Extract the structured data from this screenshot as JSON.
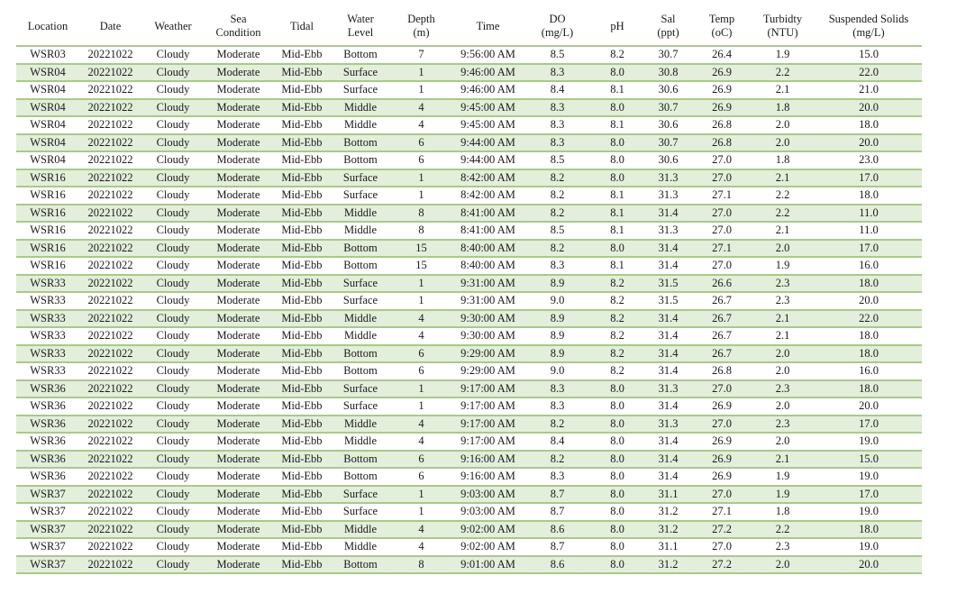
{
  "table": {
    "headers": [
      "Location",
      "Date",
      "Weather",
      "Sea\nCondition",
      "Tidal",
      "Water\nLevel",
      "Depth\n(m)",
      "Time",
      "DO\n(mg/L)",
      "pH",
      "Sal\n(ppt)",
      "Temp\n(oC)",
      "Turbidty\n(NTU)",
      "Suspended Solids\n(mg/L)"
    ],
    "rows": [
      [
        "WSR03",
        "20221022",
        "Cloudy",
        "Moderate",
        "Mid-Ebb",
        "Bottom",
        "7",
        "9:56:00 AM",
        "8.5",
        "8.2",
        "30.7",
        "26.4",
        "1.9",
        "15.0"
      ],
      [
        "WSR04",
        "20221022",
        "Cloudy",
        "Moderate",
        "Mid-Ebb",
        "Surface",
        "1",
        "9:46:00 AM",
        "8.3",
        "8.0",
        "30.8",
        "26.9",
        "2.2",
        "22.0"
      ],
      [
        "WSR04",
        "20221022",
        "Cloudy",
        "Moderate",
        "Mid-Ebb",
        "Surface",
        "1",
        "9:46:00 AM",
        "8.4",
        "8.1",
        "30.6",
        "26.9",
        "2.1",
        "21.0"
      ],
      [
        "WSR04",
        "20221022",
        "Cloudy",
        "Moderate",
        "Mid-Ebb",
        "Middle",
        "4",
        "9:45:00 AM",
        "8.3",
        "8.0",
        "30.7",
        "26.9",
        "1.8",
        "20.0"
      ],
      [
        "WSR04",
        "20221022",
        "Cloudy",
        "Moderate",
        "Mid-Ebb",
        "Middle",
        "4",
        "9:45:00 AM",
        "8.3",
        "8.1",
        "30.6",
        "26.8",
        "2.0",
        "18.0"
      ],
      [
        "WSR04",
        "20221022",
        "Cloudy",
        "Moderate",
        "Mid-Ebb",
        "Bottom",
        "6",
        "9:44:00 AM",
        "8.3",
        "8.0",
        "30.7",
        "26.8",
        "2.0",
        "20.0"
      ],
      [
        "WSR04",
        "20221022",
        "Cloudy",
        "Moderate",
        "Mid-Ebb",
        "Bottom",
        "6",
        "9:44:00 AM",
        "8.5",
        "8.0",
        "30.6",
        "27.0",
        "1.8",
        "23.0"
      ],
      [
        "WSR16",
        "20221022",
        "Cloudy",
        "Moderate",
        "Mid-Ebb",
        "Surface",
        "1",
        "8:42:00 AM",
        "8.2",
        "8.0",
        "31.3",
        "27.0",
        "2.1",
        "17.0"
      ],
      [
        "WSR16",
        "20221022",
        "Cloudy",
        "Moderate",
        "Mid-Ebb",
        "Surface",
        "1",
        "8:42:00 AM",
        "8.2",
        "8.1",
        "31.3",
        "27.1",
        "2.2",
        "18.0"
      ],
      [
        "WSR16",
        "20221022",
        "Cloudy",
        "Moderate",
        "Mid-Ebb",
        "Middle",
        "8",
        "8:41:00 AM",
        "8.2",
        "8.1",
        "31.4",
        "27.0",
        "2.2",
        "11.0"
      ],
      [
        "WSR16",
        "20221022",
        "Cloudy",
        "Moderate",
        "Mid-Ebb",
        "Middle",
        "8",
        "8:41:00 AM",
        "8.5",
        "8.1",
        "31.3",
        "27.0",
        "2.1",
        "11.0"
      ],
      [
        "WSR16",
        "20221022",
        "Cloudy",
        "Moderate",
        "Mid-Ebb",
        "Bottom",
        "15",
        "8:40:00 AM",
        "8.2",
        "8.0",
        "31.4",
        "27.1",
        "2.0",
        "17.0"
      ],
      [
        "WSR16",
        "20221022",
        "Cloudy",
        "Moderate",
        "Mid-Ebb",
        "Bottom",
        "15",
        "8:40:00 AM",
        "8.3",
        "8.1",
        "31.4",
        "27.0",
        "1.9",
        "16.0"
      ],
      [
        "WSR33",
        "20221022",
        "Cloudy",
        "Moderate",
        "Mid-Ebb",
        "Surface",
        "1",
        "9:31:00 AM",
        "8.9",
        "8.2",
        "31.5",
        "26.6",
        "2.3",
        "18.0"
      ],
      [
        "WSR33",
        "20221022",
        "Cloudy",
        "Moderate",
        "Mid-Ebb",
        "Surface",
        "1",
        "9:31:00 AM",
        "9.0",
        "8.2",
        "31.5",
        "26.7",
        "2.3",
        "20.0"
      ],
      [
        "WSR33",
        "20221022",
        "Cloudy",
        "Moderate",
        "Mid-Ebb",
        "Middle",
        "4",
        "9:30:00 AM",
        "8.9",
        "8.2",
        "31.4",
        "26.7",
        "2.1",
        "22.0"
      ],
      [
        "WSR33",
        "20221022",
        "Cloudy",
        "Moderate",
        "Mid-Ebb",
        "Middle",
        "4",
        "9:30:00 AM",
        "8.9",
        "8.2",
        "31.4",
        "26.7",
        "2.1",
        "18.0"
      ],
      [
        "WSR33",
        "20221022",
        "Cloudy",
        "Moderate",
        "Mid-Ebb",
        "Bottom",
        "6",
        "9:29:00 AM",
        "8.9",
        "8.2",
        "31.4",
        "26.7",
        "2.0",
        "18.0"
      ],
      [
        "WSR33",
        "20221022",
        "Cloudy",
        "Moderate",
        "Mid-Ebb",
        "Bottom",
        "6",
        "9:29:00 AM",
        "9.0",
        "8.2",
        "31.4",
        "26.8",
        "2.0",
        "16.0"
      ],
      [
        "WSR36",
        "20221022",
        "Cloudy",
        "Moderate",
        "Mid-Ebb",
        "Surface",
        "1",
        "9:17:00 AM",
        "8.3",
        "8.0",
        "31.3",
        "27.0",
        "2.3",
        "18.0"
      ],
      [
        "WSR36",
        "20221022",
        "Cloudy",
        "Moderate",
        "Mid-Ebb",
        "Surface",
        "1",
        "9:17:00 AM",
        "8.3",
        "8.0",
        "31.4",
        "26.9",
        "2.0",
        "20.0"
      ],
      [
        "WSR36",
        "20221022",
        "Cloudy",
        "Moderate",
        "Mid-Ebb",
        "Middle",
        "4",
        "9:17:00 AM",
        "8.2",
        "8.0",
        "31.3",
        "27.0",
        "2.3",
        "17.0"
      ],
      [
        "WSR36",
        "20221022",
        "Cloudy",
        "Moderate",
        "Mid-Ebb",
        "Middle",
        "4",
        "9:17:00 AM",
        "8.4",
        "8.0",
        "31.4",
        "26.9",
        "2.0",
        "19.0"
      ],
      [
        "WSR36",
        "20221022",
        "Cloudy",
        "Moderate",
        "Mid-Ebb",
        "Bottom",
        "6",
        "9:16:00 AM",
        "8.2",
        "8.0",
        "31.4",
        "26.9",
        "2.1",
        "15.0"
      ],
      [
        "WSR36",
        "20221022",
        "Cloudy",
        "Moderate",
        "Mid-Ebb",
        "Bottom",
        "6",
        "9:16:00 AM",
        "8.3",
        "8.0",
        "31.4",
        "26.9",
        "1.9",
        "19.0"
      ],
      [
        "WSR37",
        "20221022",
        "Cloudy",
        "Moderate",
        "Mid-Ebb",
        "Surface",
        "1",
        "9:03:00 AM",
        "8.7",
        "8.0",
        "31.1",
        "27.0",
        "1.9",
        "17.0"
      ],
      [
        "WSR37",
        "20221022",
        "Cloudy",
        "Moderate",
        "Mid-Ebb",
        "Surface",
        "1",
        "9:03:00 AM",
        "8.7",
        "8.0",
        "31.2",
        "27.1",
        "1.8",
        "19.0"
      ],
      [
        "WSR37",
        "20221022",
        "Cloudy",
        "Moderate",
        "Mid-Ebb",
        "Middle",
        "4",
        "9:02:00 AM",
        "8.6",
        "8.0",
        "31.2",
        "27.2",
        "2.2",
        "18.0"
      ],
      [
        "WSR37",
        "20221022",
        "Cloudy",
        "Moderate",
        "Mid-Ebb",
        "Middle",
        "4",
        "9:02:00 AM",
        "8.7",
        "8.0",
        "31.1",
        "27.0",
        "2.3",
        "19.0"
      ],
      [
        "WSR37",
        "20221022",
        "Cloudy",
        "Moderate",
        "Mid-Ebb",
        "Bottom",
        "8",
        "9:01:00 AM",
        "8.6",
        "8.0",
        "31.2",
        "27.2",
        "2.0",
        "20.0"
      ]
    ]
  },
  "colors": {
    "row_alt": "#e3eedb",
    "rule": "#a9c98a"
  }
}
